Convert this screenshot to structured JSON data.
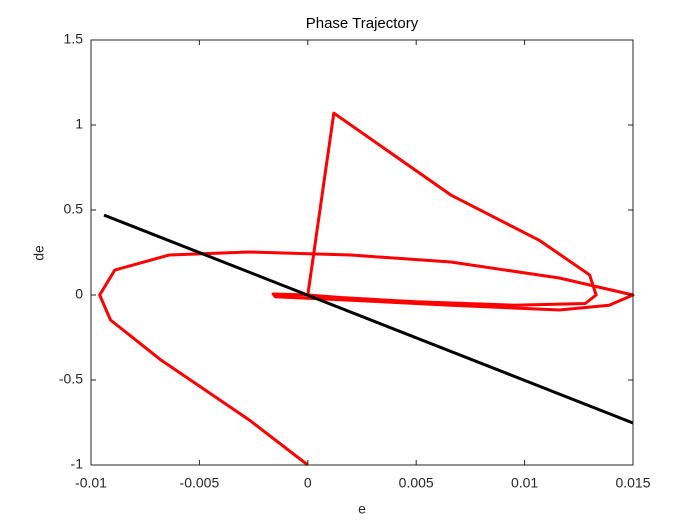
{
  "chart_data": {
    "type": "line",
    "title": "Phase Trajectory",
    "xlabel": "e",
    "ylabel": "de",
    "xlim": [
      -0.01,
      0.015
    ],
    "xticks": [
      -0.01,
      -0.005,
      0,
      0.005,
      0.01,
      0.015
    ],
    "ylim": [
      -1,
      1.5
    ],
    "yticks": [
      -1,
      -0.5,
      0,
      0.5,
      1,
      1.5
    ],
    "grid": false,
    "series": [
      {
        "color": "#ff0000",
        "x": [
          0,
          -0.0027,
          -0.0068,
          -0.0091,
          -0.0096,
          -0.0089,
          -0.0064,
          -0.0027,
          0.002,
          0.0066,
          0.0116,
          0.015,
          0.0139,
          0.0116,
          0.0066,
          0.0019,
          -0.0015,
          -0.0016,
          0,
          0.0012,
          0.0066,
          0.0107,
          0.013,
          0.0133,
          0.0128,
          0.0095,
          0.005,
          0.0015,
          0
        ],
        "values": [
          -1,
          -0.735,
          -0.38,
          -0.147,
          0,
          0.147,
          0.235,
          0.253,
          0.235,
          0.194,
          0.1,
          0,
          -0.06,
          -0.088,
          -0.06,
          -0.03,
          -0.01,
          0.006,
          0,
          1.07,
          0.588,
          0.32,
          0.118,
          0,
          -0.05,
          -0.06,
          -0.04,
          -0.015,
          0
        ]
      },
      {
        "color": "#000000",
        "x": [
          -0.0094,
          0.015
        ],
        "values": [
          0.47,
          -0.753
        ]
      }
    ]
  }
}
